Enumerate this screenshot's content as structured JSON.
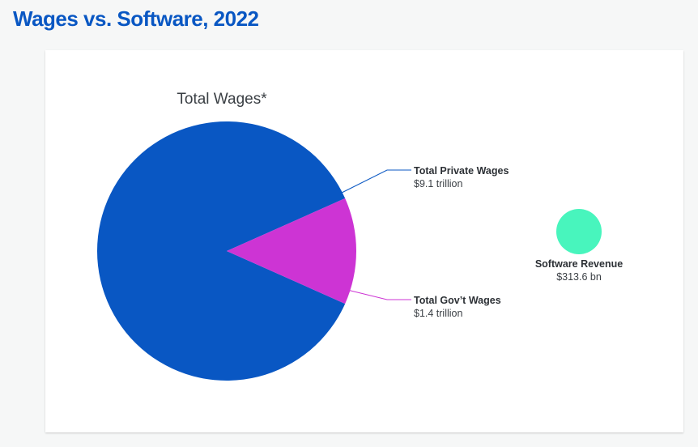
{
  "page": {
    "title": "Wages vs. Software, 2022"
  },
  "chart_data": [
    {
      "type": "pie",
      "title": "Total Wages*",
      "unit": "trillion USD",
      "slices": [
        {
          "name": "Total Private Wages",
          "value": 9.1,
          "value_label": "$9.1 trillion",
          "color": "#0957c3"
        },
        {
          "name": "Total Gov’t Wages",
          "value": 1.4,
          "value_label": "$1.4 trillion",
          "color": "#cd34d4"
        }
      ],
      "leader_line_color": "#0957c3"
    },
    {
      "type": "bubble",
      "title": "",
      "series": [
        {
          "name": "Software Revenue",
          "value": 313.6,
          "value_label": "$313.6 bn",
          "color": "#48f5bd"
        }
      ]
    }
  ]
}
